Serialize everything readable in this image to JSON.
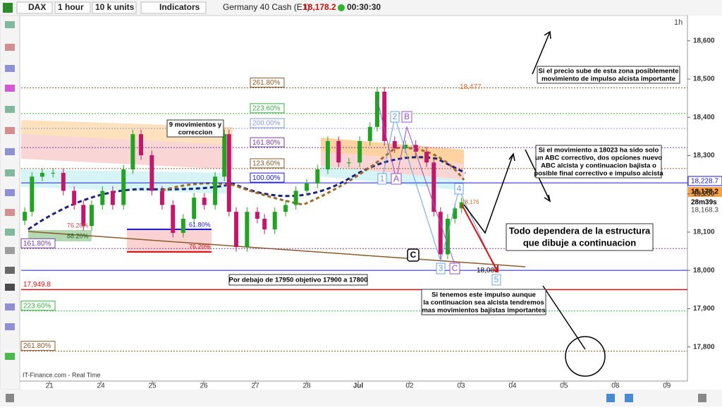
{
  "toolbar": {
    "instrument": "DAX",
    "timeframe": "1 hour",
    "units": "10 k units",
    "indicators": "Indicators",
    "market": "Germany 40 Cash (E1)",
    "price": "18,178.2",
    "timer": "00:30:30",
    "period": "1h"
  },
  "footer": "IT-Finance.com - Real Time",
  "price_markers": [
    "18,228.7",
    "18,178.2",
    "28m39s",
    "18,168.3"
  ],
  "chart_data": {
    "type": "candlestick",
    "x": [
      -0.48,
      -0.34,
      -0.14,
      0.07,
      0.27,
      0.48,
      0.66,
      0.82,
      1.03,
      1.23,
      1.44,
      1.62,
      1.78,
      1.99,
      2.19,
      2.4,
      2.6,
      2.81,
      3.01,
      3.22,
      3.4,
      3.49,
      3.63,
      3.84,
      4.04,
      4.18,
      4.38,
      4.59,
      4.79,
      5.0,
      5.21,
      5.41,
      5.62,
      5.82,
      6.03,
      6.23,
      6.37,
      6.51,
      6.71,
      6.92,
      7.12,
      7.33,
      7.47,
      7.6,
      7.74,
      7.88,
      8.01
    ],
    "open": [
      18130,
      18153,
      18245,
      18255,
      18255,
      18208,
      18171,
      18116,
      18171,
      18208,
      18171,
      18264,
      18356,
      18301,
      18208,
      18171,
      18098,
      18135,
      18190,
      18171,
      18245,
      18356,
      18153,
      18061,
      18153,
      18135,
      18107,
      18153,
      18171,
      18208,
      18227,
      18264,
      18338,
      18282,
      18282,
      18338,
      18375,
      18467,
      18338,
      18319,
      18328,
      18310,
      18282,
      18153,
      18042,
      18135,
      18162
    ],
    "high": [
      18165,
      18257,
      18267,
      18267,
      18267,
      18220,
      18183,
      18183,
      18220,
      18220,
      18276,
      18368,
      18368,
      18313,
      18220,
      18183,
      18147,
      18202,
      18202,
      18257,
      18368,
      18368,
      18165,
      18165,
      18165,
      18147,
      18165,
      18183,
      18220,
      18239,
      18276,
      18350,
      18350,
      18294,
      18350,
      18387,
      18479,
      18479,
      18350,
      18340,
      18340,
      18322,
      18294,
      18165,
      18147,
      18174,
      18190
    ],
    "low": [
      18118,
      18141,
      18233,
      18243,
      18196,
      18159,
      18104,
      18104,
      18159,
      18159,
      18159,
      18252,
      18289,
      18196,
      18159,
      18086,
      18086,
      18123,
      18159,
      18159,
      18233,
      18141,
      18049,
      18049,
      18123,
      18095,
      18095,
      18141,
      18159,
      18196,
      18215,
      18252,
      18270,
      18270,
      18270,
      18326,
      18363,
      18326,
      18307,
      18307,
      18298,
      18270,
      18141,
      18030,
      18030,
      18123,
      18150
    ],
    "close": [
      18153,
      18245,
      18255,
      18255,
      18208,
      18171,
      18116,
      18171,
      18208,
      18171,
      18264,
      18356,
      18301,
      18208,
      18171,
      18098,
      18135,
      18190,
      18171,
      18245,
      18356,
      18153,
      18061,
      18153,
      18135,
      18107,
      18153,
      18171,
      18208,
      18227,
      18264,
      18338,
      18282,
      18282,
      18338,
      18375,
      18467,
      18338,
      18319,
      18328,
      18310,
      18282,
      18153,
      18042,
      18135,
      18162,
      18178
    ],
    "up_color": "#23a323",
    "down_color": "#c2186b",
    "xlim": [
      -0.55,
      12.4
    ],
    "ylim": [
      17720,
      18655
    ],
    "xticks": [
      {
        "value": 0,
        "label": "21"
      },
      {
        "value": 1,
        "label": "24"
      },
      {
        "value": 2,
        "label": "25"
      },
      {
        "value": 3,
        "label": "26"
      },
      {
        "value": 4,
        "label": "27"
      },
      {
        "value": 5,
        "label": "28"
      },
      {
        "value": 6,
        "label": "Jul"
      },
      {
        "value": 7,
        "label": "02"
      },
      {
        "value": 8,
        "label": "03"
      },
      {
        "value": 9,
        "label": "04"
      },
      {
        "value": 10,
        "label": "05"
      },
      {
        "value": 11,
        "label": "08"
      },
      {
        "value": 12,
        "label": "09"
      }
    ],
    "yticks": [
      {
        "value": 17800,
        "label": "17,800"
      },
      {
        "value": 17900,
        "label": "17,900"
      },
      {
        "value": 18000,
        "label": "18,000"
      },
      {
        "value": 18100,
        "label": "18,100"
      },
      {
        "value": 18200,
        "label": "18,200"
      },
      {
        "value": 18300,
        "label": "18,300"
      },
      {
        "value": 18400,
        "label": "18,400"
      },
      {
        "value": 18500,
        "label": "18,500"
      },
      {
        "value": 18600,
        "label": "18,600"
      }
    ],
    "levels": [
      {
        "label": "261.80%",
        "value": 18477,
        "color": "#8b5a2b",
        "price_label": "18,477"
      },
      {
        "label": "223.60%",
        "value": 18410,
        "color": "#3cb043"
      },
      {
        "label": "200.00%",
        "value": 18371,
        "color": "#8a9ad0"
      },
      {
        "label": "161.80%",
        "value": 18321,
        "color": "#7a3ea0"
      },
      {
        "label": "123.60%",
        "value": 18266,
        "color": "#8b5a2b"
      },
      {
        "label": "100.00%",
        "value": 18228.7,
        "color": "#1a1ad0"
      },
      {
        "label": "161.80%",
        "value": 18057,
        "color": "#7a3ea0"
      },
      {
        "value": 18000,
        "color": "#1a1ad0",
        "price_label": "18,000"
      },
      {
        "label": "17,949.8",
        "value": 17949.8,
        "color": "#e01010"
      },
      {
        "label": "223.60%",
        "value": 17894,
        "color": "#3cb043"
      },
      {
        "label": "261.80%",
        "value": 17789,
        "color": "#8b5a2b"
      }
    ],
    "annotations": [
      {
        "lines": [
          "9 movimientos y",
          "correccion"
        ]
      },
      {
        "lines": [
          "Si el precio sube de esta zona posiblemente",
          "movimiento de impulso alcista importante"
        ]
      },
      {
        "lines": [
          "Si el movimiento a 18023 ha sido solo",
          "un ABC correctivo, dos opciones nuevo",
          "ABC alcista y continuacion bajista o",
          "posible final correctivo e impulso alcista"
        ]
      },
      {
        "lines": [
          "Todo dependera de la estructura",
          "que dibuje a continuacion"
        ]
      },
      {
        "lines": [
          "Por debajo de 17950 objetivo 17900 a 17800"
        ]
      },
      {
        "lines": [
          "Si tenemos este impulso aunque",
          "la continuacion sea alcista tendremos",
          "mas movimientos bajistas importantes"
        ]
      }
    ],
    "small_labels": [
      "76.20%",
      "88.20%",
      "61.80%",
      "76.20%",
      "18,176"
    ],
    "wave_labels": [
      "1",
      "2",
      "B",
      "A",
      "3",
      "C",
      "4",
      "5",
      "C"
    ]
  }
}
